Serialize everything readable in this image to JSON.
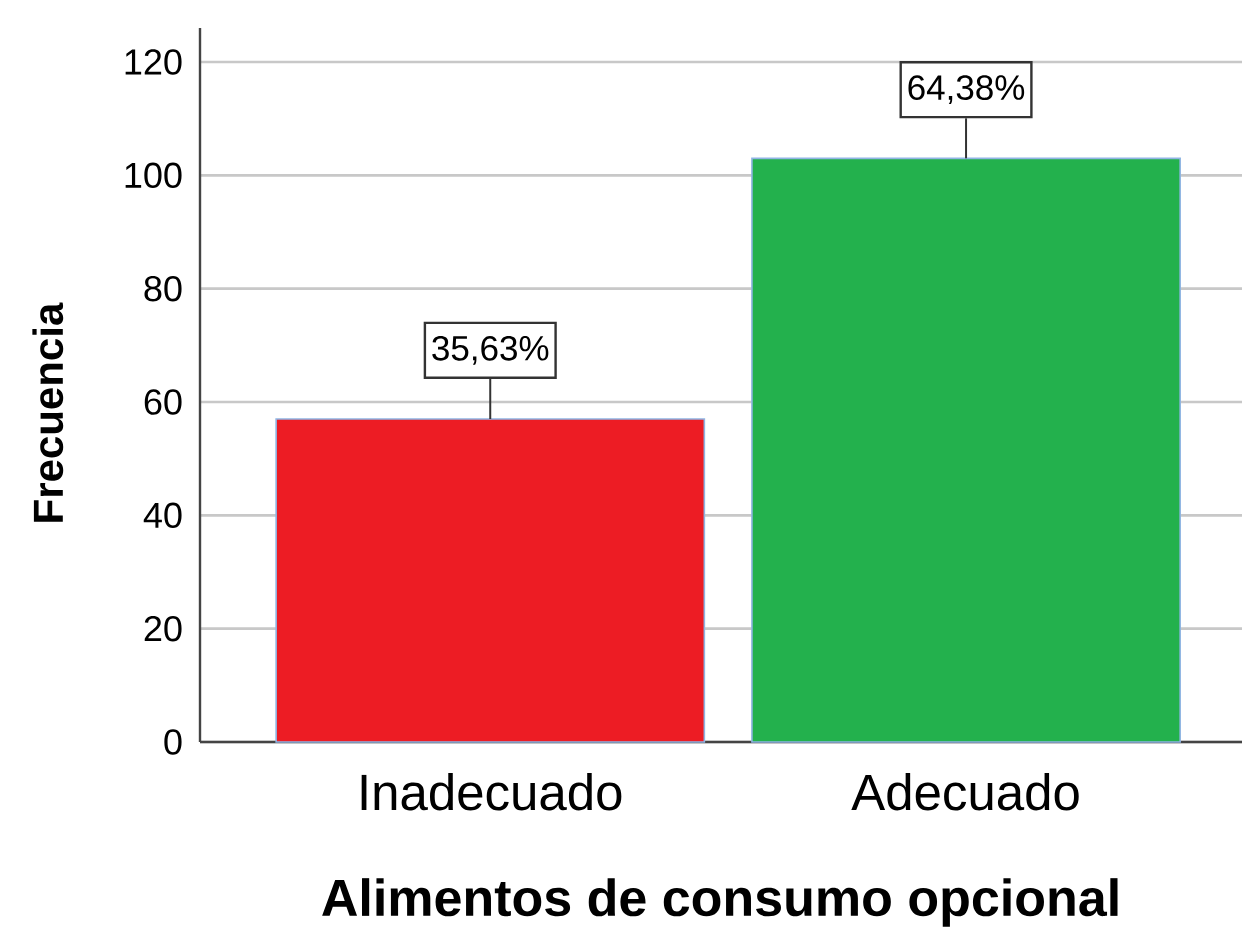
{
  "chart_data": {
    "type": "bar",
    "xlabel": "Alimentos de consumo opcional",
    "ylabel": "Frecuencia",
    "categories": [
      "Inadecuado",
      "Adecuado"
    ],
    "values": [
      57,
      103
    ],
    "colors": [
      "#ed1c24",
      "#23b14d"
    ],
    "annotations": [
      {
        "text": "35,63%",
        "x": "Inadecuado",
        "y": 57
      },
      {
        "text": "64,38%",
        "x": "Adecuado",
        "y": 103
      }
    ],
    "ylim": [
      0,
      126
    ],
    "yticks": [
      0,
      20,
      40,
      60,
      80,
      100,
      120
    ],
    "grid": "y"
  }
}
